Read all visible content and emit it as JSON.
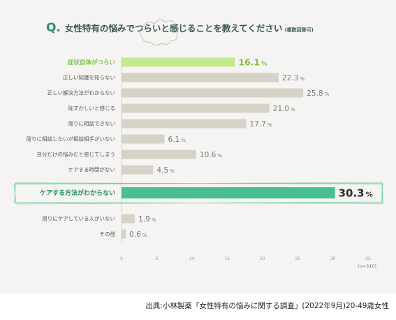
{
  "title": {
    "q_mark": "Q.",
    "question": "女性特有の悩みでつらいと感じることを教えてください",
    "note": "(複数回答可)"
  },
  "source": "出典:小林製薬「女性特有の悩みに関する調査」(2022年9月)20-49歳女性",
  "chart_data": {
    "type": "bar",
    "orientation": "horizontal",
    "categories": [
      "症状自体がつらい",
      "正しい知識を知らない",
      "正しい解決方法がわからない",
      "恥ずかしいと感じる",
      "周りに相談できない",
      "周りに相談したいが相談相手がいない",
      "自分だけの悩みだと感じてしまう",
      "ケアする時間がない",
      "ケアする方法がわからない",
      "周りにケアしている人がいない",
      "その他"
    ],
    "values": [
      16.1,
      22.3,
      25.8,
      21.0,
      17.7,
      6.1,
      10.6,
      4.5,
      30.3,
      1.9,
      0.6
    ],
    "value_labels": [
      "16.1",
      "22.3",
      "25.8",
      "21.0",
      "17.7",
      "6.1",
      "10.6",
      "4.5",
      "30.3",
      "1.9",
      "0.6"
    ],
    "unit": "%",
    "xlim": [
      0,
      35
    ],
    "xticks": [
      "0",
      "5",
      "10",
      "15",
      "20",
      "25",
      "30",
      "35"
    ],
    "sample_note": "(n=310)",
    "colors": {
      "default": "#d5d2c8",
      "highlight_light": "#c4e88f",
      "highlight_main": "#47bf8e",
      "label_light": "#79c240",
      "label_main": "#1f8f66",
      "label_default": "#555555",
      "value_default": "#7a7a7a"
    },
    "styles": [
      "light",
      "default",
      "default",
      "default",
      "default",
      "default",
      "default",
      "default",
      "main",
      "default",
      "default"
    ]
  }
}
